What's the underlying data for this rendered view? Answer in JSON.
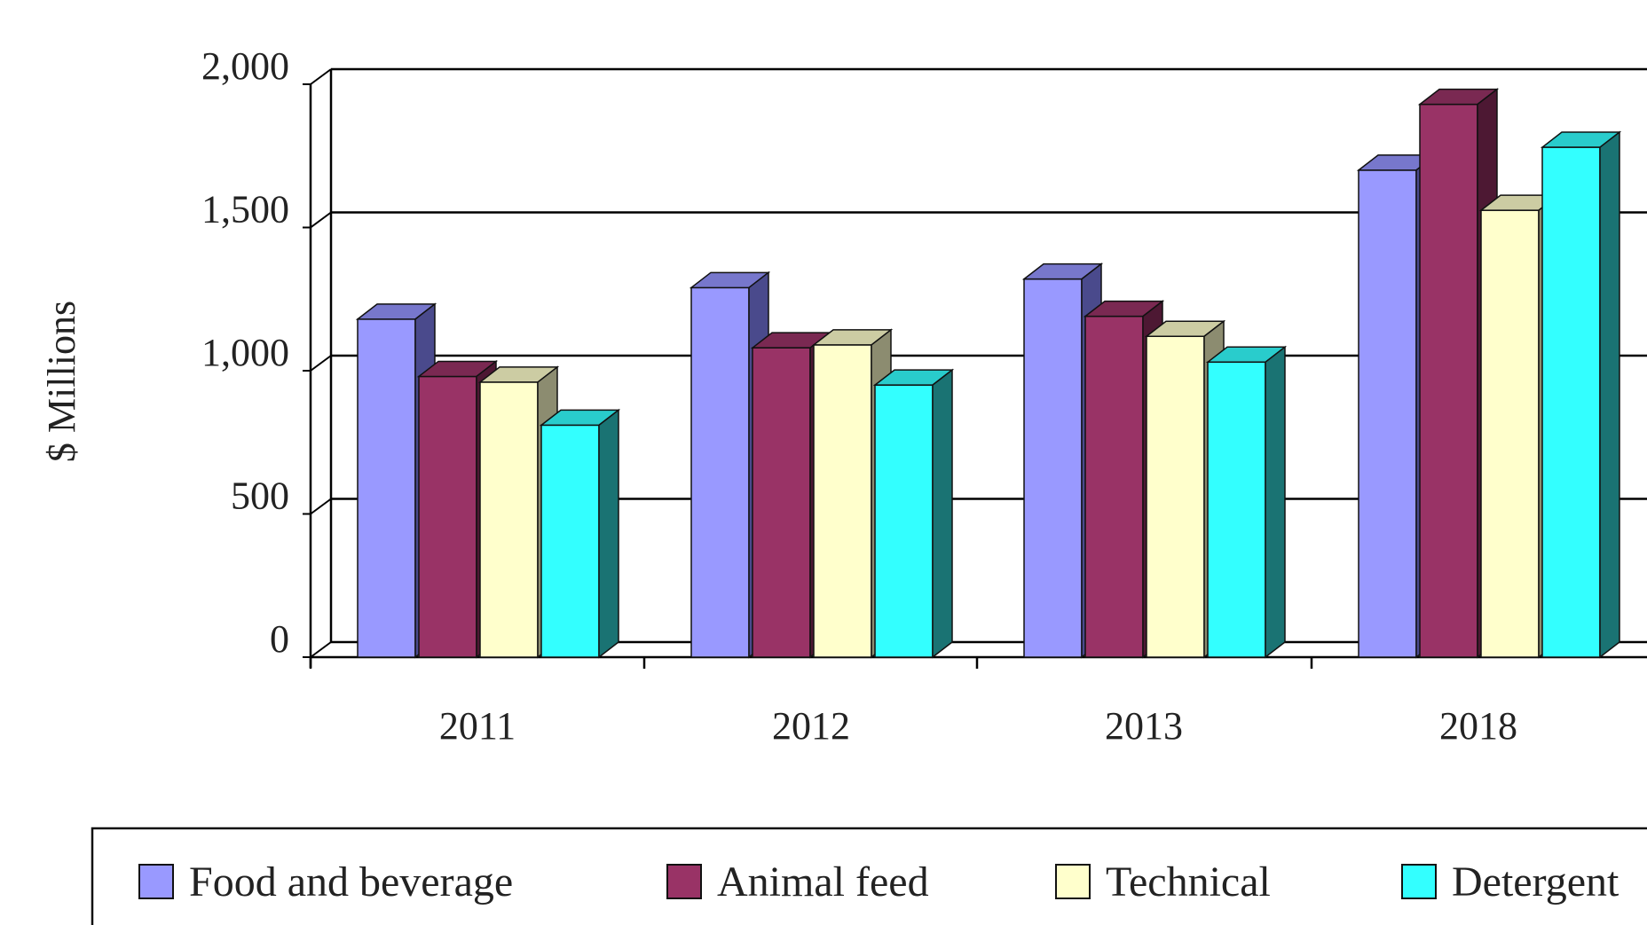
{
  "chart_data": {
    "type": "bar",
    "title": "",
    "xlabel": "",
    "ylabel": "$ Millions",
    "ylim": [
      0,
      2000
    ],
    "yticks": [
      "0",
      "500",
      "1,000",
      "1,500",
      "2,000"
    ],
    "ytick_values": [
      0,
      500,
      1000,
      1500,
      2000
    ],
    "categories": [
      "2011",
      "2012",
      "2013",
      "2018"
    ],
    "grid": true,
    "style": "3d-clustered",
    "legend_position": "bottom",
    "series": [
      {
        "name": "Food and beverage",
        "values": [
          1180,
          1290,
          1320,
          1700
        ],
        "color": "#9999ff",
        "side_color": "#4a4a8c",
        "top_color": "#7777cc"
      },
      {
        "name": "Animal feed",
        "values": [
          980,
          1080,
          1190,
          1930
        ],
        "color": "#993366",
        "side_color": "#4d1833",
        "top_color": "#7a2952"
      },
      {
        "name": "Technical",
        "values": [
          960,
          1090,
          1120,
          1560
        ],
        "color": "#ffffcc",
        "side_color": "#8c8c70",
        "top_color": "#cccca3"
      },
      {
        "name": "Detergent",
        "values": [
          810,
          950,
          1030,
          1780
        ],
        "color": "#33ffff",
        "side_color": "#1a7373",
        "top_color": "#29cccc"
      }
    ]
  }
}
